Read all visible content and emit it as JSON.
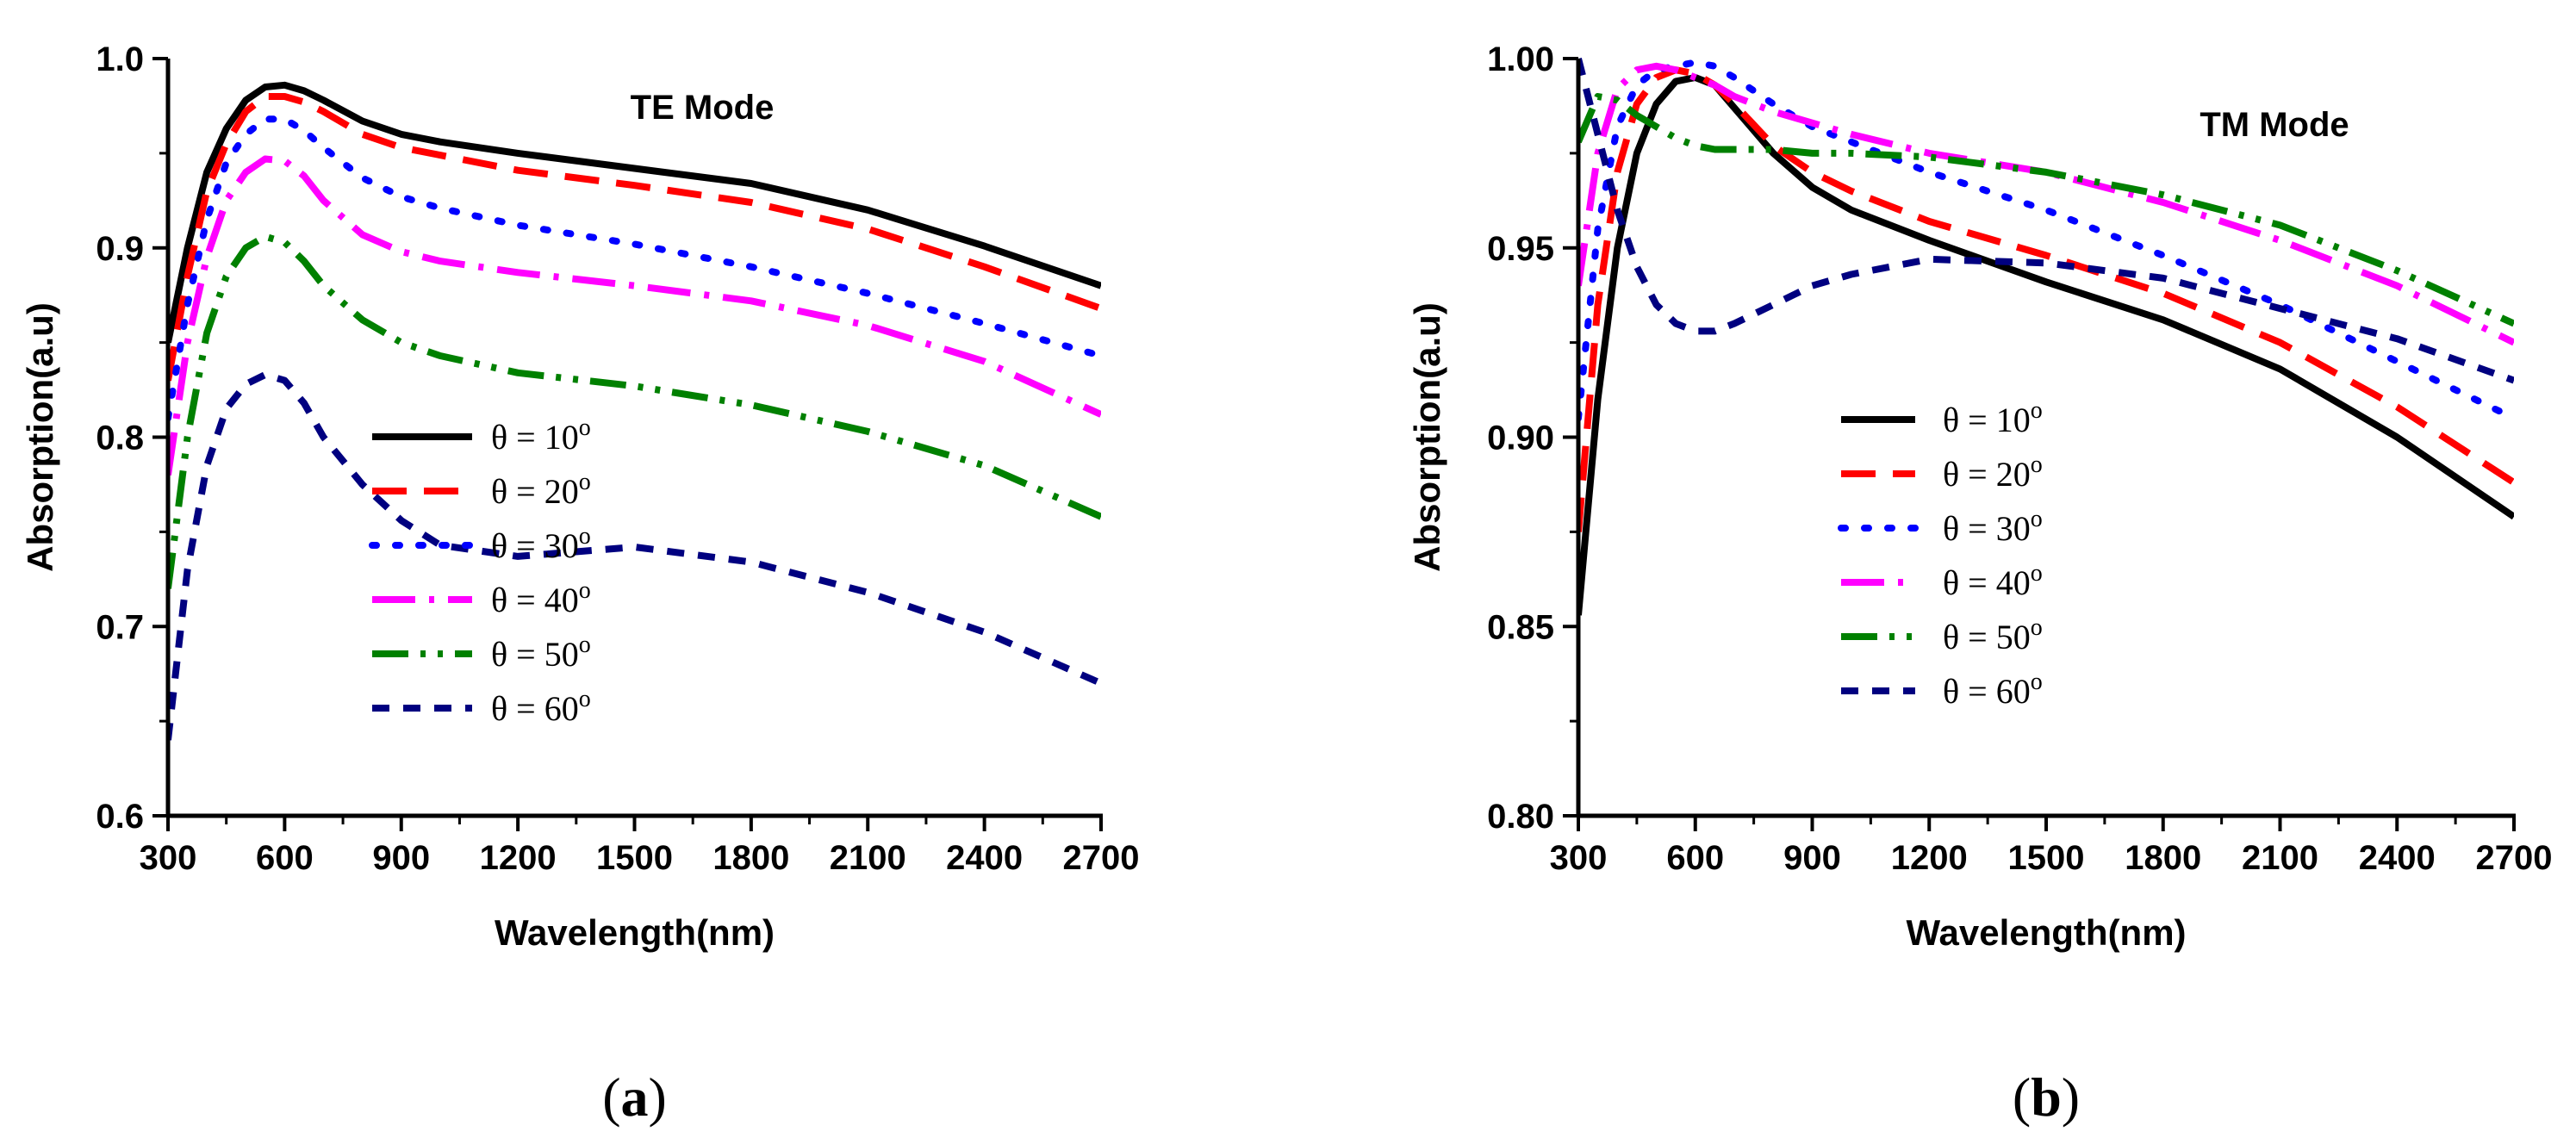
{
  "chart_data": [
    {
      "type": "line",
      "panel": "(a)",
      "panel_letter": "a",
      "title": "TE Mode",
      "xlabel": "Wavelength(nm)",
      "ylabel": "Absorption(a.u)",
      "xlim": [
        300,
        2700
      ],
      "ylim": [
        0.6,
        1.0
      ],
      "xticks": [
        300,
        600,
        900,
        1200,
        1500,
        1800,
        2100,
        2400,
        2700
      ],
      "xtick_labels": [
        "300",
        "600",
        "900",
        "1200",
        "1500",
        "1800",
        "2100",
        "2400",
        "2700"
      ],
      "yticks": [
        0.6,
        0.7,
        0.8,
        0.9,
        1.0
      ],
      "ytick_labels": [
        "0.6",
        "0.7",
        "0.8",
        "0.9",
        "1.0"
      ],
      "legend_position": "center",
      "series": [
        {
          "name": "θ = 10°",
          "theta": "θ = 10",
          "deg": "o",
          "color": "#000000",
          "style": "solid",
          "x": [
            300,
            350,
            400,
            450,
            500,
            550,
            600,
            650,
            700,
            800,
            900,
            1000,
            1200,
            1500,
            1800,
            2100,
            2400,
            2700
          ],
          "y": [
            0.85,
            0.9,
            0.94,
            0.963,
            0.978,
            0.985,
            0.986,
            0.983,
            0.978,
            0.967,
            0.96,
            0.956,
            0.95,
            0.942,
            0.934,
            0.92,
            0.901,
            0.88
          ]
        },
        {
          "name": "θ = 20°",
          "theta": "θ = 20",
          "deg": "o",
          "color": "#ff0000",
          "style": "dash",
          "x": [
            300,
            350,
            400,
            450,
            500,
            550,
            600,
            650,
            700,
            800,
            900,
            1000,
            1200,
            1500,
            1800,
            2100,
            2400,
            2700
          ],
          "y": [
            0.83,
            0.885,
            0.93,
            0.955,
            0.972,
            0.98,
            0.98,
            0.977,
            0.972,
            0.96,
            0.953,
            0.949,
            0.941,
            0.933,
            0.924,
            0.91,
            0.89,
            0.868
          ]
        },
        {
          "name": "θ = 30°",
          "theta": "θ = 30",
          "deg": "o",
          "color": "#0000ff",
          "style": "dot",
          "x": [
            300,
            350,
            400,
            450,
            500,
            550,
            600,
            650,
            700,
            800,
            900,
            1000,
            1200,
            1500,
            1800,
            2100,
            2400,
            2700
          ],
          "y": [
            0.81,
            0.87,
            0.915,
            0.945,
            0.96,
            0.968,
            0.968,
            0.962,
            0.953,
            0.937,
            0.927,
            0.921,
            0.912,
            0.902,
            0.89,
            0.876,
            0.86,
            0.843
          ]
        },
        {
          "name": "θ = 40°",
          "theta": "θ = 40",
          "deg": "o",
          "color": "#ff00ff",
          "style": "dashdot",
          "x": [
            300,
            350,
            400,
            450,
            500,
            550,
            600,
            650,
            700,
            800,
            900,
            1000,
            1200,
            1500,
            1800,
            2100,
            2400,
            2700
          ],
          "y": [
            0.78,
            0.85,
            0.895,
            0.925,
            0.94,
            0.947,
            0.946,
            0.938,
            0.925,
            0.907,
            0.898,
            0.893,
            0.887,
            0.88,
            0.872,
            0.859,
            0.84,
            0.812
          ]
        },
        {
          "name": "θ = 50°",
          "theta": "θ = 50",
          "deg": "o",
          "color": "#008000",
          "style": "dashdotdot",
          "x": [
            300,
            350,
            400,
            450,
            500,
            550,
            600,
            650,
            700,
            800,
            900,
            1000,
            1200,
            1500,
            1800,
            2100,
            2400,
            2700
          ],
          "y": [
            0.72,
            0.8,
            0.855,
            0.885,
            0.9,
            0.906,
            0.903,
            0.893,
            0.88,
            0.862,
            0.85,
            0.843,
            0.834,
            0.827,
            0.817,
            0.803,
            0.785,
            0.758
          ]
        },
        {
          "name": "θ = 60°",
          "theta": "θ = 60",
          "deg": "o",
          "color": "#000080",
          "style": "shortdash",
          "x": [
            300,
            350,
            400,
            450,
            500,
            550,
            600,
            650,
            700,
            800,
            900,
            1000,
            1200,
            1500,
            1800,
            2100,
            2400,
            2700
          ],
          "y": [
            0.64,
            0.73,
            0.785,
            0.815,
            0.828,
            0.833,
            0.83,
            0.818,
            0.8,
            0.775,
            0.756,
            0.743,
            0.737,
            0.742,
            0.734,
            0.718,
            0.697,
            0.67
          ]
        }
      ]
    },
    {
      "type": "line",
      "panel": "(b)",
      "panel_letter": "b",
      "title": "TM Mode",
      "xlabel": "Wavelength(nm)",
      "ylabel": "Absorption(a.u)",
      "xlim": [
        300,
        2700
      ],
      "ylim": [
        0.8,
        1.0
      ],
      "xticks": [
        300,
        600,
        900,
        1200,
        1500,
        1800,
        2100,
        2400,
        2700
      ],
      "xtick_labels": [
        "300",
        "600",
        "900",
        "1200",
        "1500",
        "1800",
        "2100",
        "2400",
        "2700"
      ],
      "yticks": [
        0.8,
        0.85,
        0.9,
        0.95,
        1.0
      ],
      "ytick_labels": [
        "0.80",
        "0.85",
        "0.90",
        "0.95",
        "1.00"
      ],
      "legend_position": "center",
      "series": [
        {
          "name": "θ = 10°",
          "theta": "θ = 10",
          "deg": "o",
          "color": "#000000",
          "style": "solid",
          "x": [
            300,
            350,
            400,
            450,
            500,
            550,
            600,
            650,
            700,
            800,
            900,
            1000,
            1200,
            1500,
            1800,
            2100,
            2400,
            2700
          ],
          "y": [
            0.853,
            0.91,
            0.95,
            0.975,
            0.988,
            0.994,
            0.995,
            0.993,
            0.987,
            0.975,
            0.966,
            0.96,
            0.952,
            0.941,
            0.931,
            0.918,
            0.9,
            0.879
          ]
        },
        {
          "name": "θ = 20°",
          "theta": "θ = 20",
          "deg": "o",
          "color": "#ff0000",
          "style": "dash",
          "x": [
            300,
            350,
            400,
            450,
            500,
            550,
            600,
            650,
            700,
            800,
            900,
            1000,
            1200,
            1500,
            1800,
            2100,
            2400,
            2700
          ],
          "y": [
            0.875,
            0.935,
            0.97,
            0.988,
            0.995,
            0.997,
            0.996,
            0.993,
            0.988,
            0.977,
            0.97,
            0.965,
            0.957,
            0.948,
            0.938,
            0.925,
            0.908,
            0.888
          ]
        },
        {
          "name": "θ = 30°",
          "theta": "θ = 30",
          "deg": "o",
          "color": "#0000ff",
          "style": "dot",
          "x": [
            300,
            350,
            400,
            450,
            500,
            550,
            600,
            650,
            700,
            800,
            900,
            1000,
            1200,
            1500,
            1800,
            2100,
            2400,
            2700
          ],
          "y": [
            0.905,
            0.955,
            0.982,
            0.993,
            0.997,
            0.998,
            0.999,
            0.998,
            0.995,
            0.988,
            0.982,
            0.978,
            0.97,
            0.96,
            0.948,
            0.935,
            0.92,
            0.905
          ]
        },
        {
          "name": "θ = 40°",
          "theta": "θ = 40",
          "deg": "o",
          "color": "#ff00ff",
          "style": "dashdot",
          "x": [
            300,
            350,
            400,
            450,
            500,
            550,
            600,
            650,
            700,
            800,
            900,
            1000,
            1200,
            1500,
            1800,
            2100,
            2400,
            2700
          ],
          "y": [
            0.94,
            0.975,
            0.992,
            0.997,
            0.998,
            0.997,
            0.995,
            0.993,
            0.99,
            0.986,
            0.983,
            0.98,
            0.975,
            0.97,
            0.962,
            0.952,
            0.94,
            0.925
          ]
        },
        {
          "name": "θ = 50°",
          "theta": "θ = 50",
          "deg": "o",
          "color": "#008000",
          "style": "dashdotdot",
          "x": [
            300,
            350,
            400,
            450,
            500,
            550,
            600,
            650,
            700,
            800,
            900,
            1000,
            1200,
            1500,
            1800,
            2100,
            2400,
            2700
          ],
          "y": [
            0.978,
            0.99,
            0.989,
            0.985,
            0.982,
            0.979,
            0.977,
            0.976,
            0.976,
            0.976,
            0.975,
            0.975,
            0.974,
            0.97,
            0.964,
            0.956,
            0.944,
            0.93
          ]
        },
        {
          "name": "θ = 60°",
          "theta": "θ = 60",
          "deg": "o",
          "color": "#000080",
          "style": "shortdash",
          "x": [
            300,
            350,
            400,
            450,
            500,
            550,
            600,
            650,
            700,
            800,
            900,
            1000,
            1200,
            1500,
            1800,
            2100,
            2400,
            2700
          ],
          "y": [
            1.0,
            0.98,
            0.96,
            0.945,
            0.935,
            0.93,
            0.928,
            0.928,
            0.93,
            0.935,
            0.94,
            0.943,
            0.947,
            0.946,
            0.942,
            0.934,
            0.926,
            0.915
          ]
        }
      ]
    }
  ]
}
